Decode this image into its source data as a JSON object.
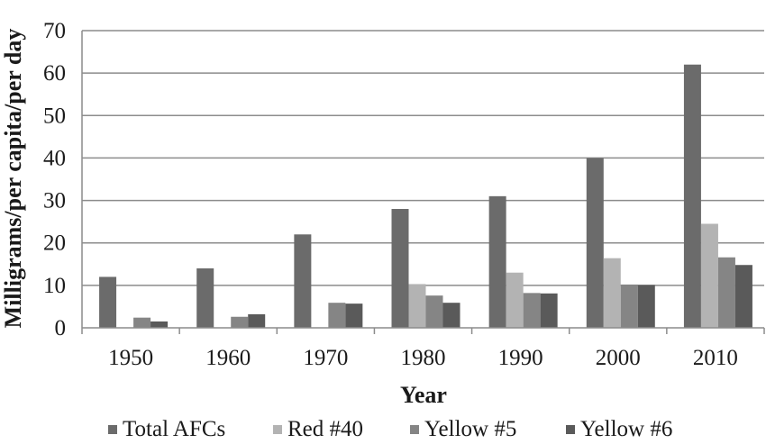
{
  "chart_data": {
    "type": "bar",
    "title": "",
    "xlabel": "Year",
    "ylabel": "Milligrams/per capita/per day",
    "categories": [
      "1950",
      "1960",
      "1970",
      "1980",
      "1990",
      "2000",
      "2010"
    ],
    "ylim": [
      0,
      70
    ],
    "yticks": [
      0,
      10,
      20,
      30,
      40,
      50,
      60,
      70
    ],
    "grid": "horizontal",
    "legend_position": "bottom",
    "series": [
      {
        "name": "Total AFCs",
        "color": "#6b6b6b",
        "values": [
          12,
          14,
          22,
          28,
          31,
          40,
          62
        ]
      },
      {
        "name": "Red #40",
        "color": "#b3b3b3",
        "values": [
          0,
          0,
          0,
          10.3,
          13,
          16.4,
          24.5
        ]
      },
      {
        "name": "Yellow #5",
        "color": "#858585",
        "values": [
          2.4,
          2.6,
          5.9,
          7.6,
          8.2,
          10.2,
          16.6
        ]
      },
      {
        "name": "Yellow #6",
        "color": "#5a5a5a",
        "values": [
          1.5,
          3.2,
          5.7,
          5.9,
          8.1,
          10.1,
          14.8
        ]
      }
    ]
  }
}
